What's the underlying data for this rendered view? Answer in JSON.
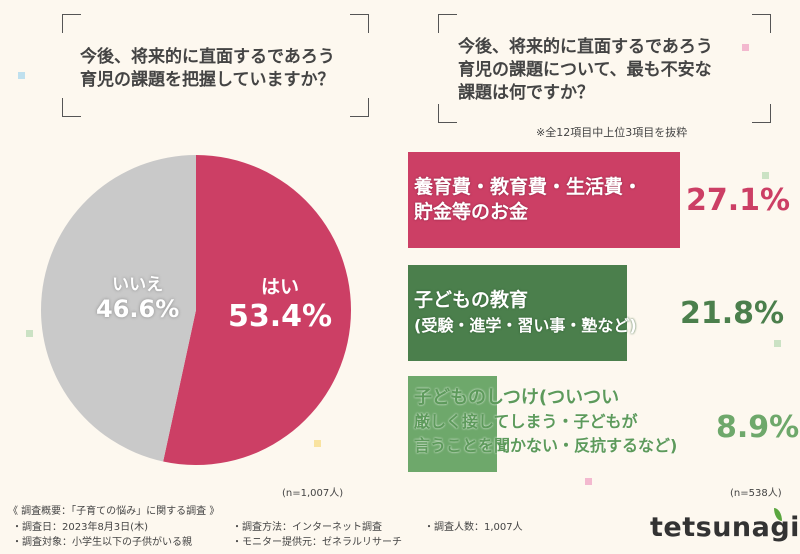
{
  "left": {
    "question_line1": "今後、将来的に直面するであろう",
    "question_line2": "育児の課題を把握していますか？",
    "n": "(n=1,007人)"
  },
  "right": {
    "question_line1": "今後、将来的に直面するであろう",
    "question_line2": "育児の課題について、最も不安な",
    "question_line3": "課題は何ですか？",
    "note": "※全12項目中上位3項目を抜粋",
    "n": "(n=538人)"
  },
  "colors": {
    "pink": "#cc3f65",
    "gray": "#c9c9c9",
    "green_dark": "#4b7f4c",
    "green_light": "#6ea86b",
    "bg": "#fdf8ef"
  },
  "chart_data": [
    {
      "type": "pie",
      "slices": [
        {
          "label": "はい",
          "value": 53.4,
          "display": "53.4%",
          "color": "#cc3f65"
        },
        {
          "label": "いいえ",
          "value": 46.6,
          "display": "46.6%",
          "color": "#c9c9c9"
        }
      ]
    },
    {
      "type": "bar",
      "orientation": "horizontal",
      "categories": [
        {
          "line1": "養育費・教育費・生活費・",
          "line2": "貯金等のお金"
        },
        {
          "line1": "子どもの教育",
          "line2": "(受験・進学・習い事・塾など)"
        },
        {
          "line1": "子どものしつけ(ついつい",
          "line2": "厳しく接してしまう・子どもが",
          "line3": "言うことを聞かない・反抗するなど)"
        }
      ],
      "values": [
        27.1,
        21.8,
        8.9
      ],
      "labels": [
        "27.1%",
        "21.8%",
        "8.9%"
      ],
      "xlim": [
        0,
        30
      ]
    }
  ],
  "footer": {
    "title": "《 調査概要：「子育ての悩み」に関する調査 》",
    "date": "・調査日：2023年8月3日(木)",
    "target": "・調査対象：小学生以下の子供がいる親",
    "method": "・調査方法：インターネット調査",
    "provider": "・モニター提供元：ゼネラルリサーチ",
    "count": "・調査人数：1,007人"
  },
  "logo": "tetsunagi"
}
